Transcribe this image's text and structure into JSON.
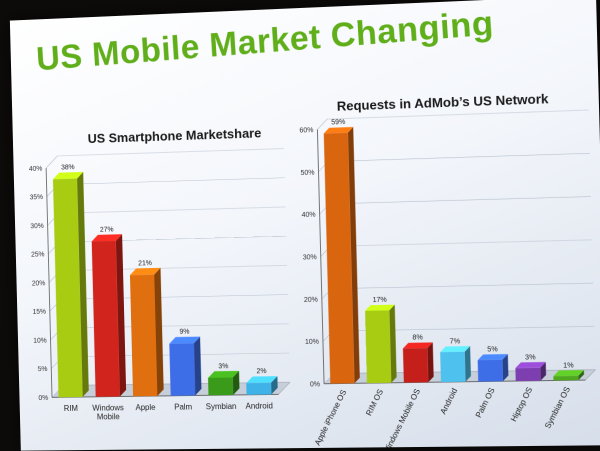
{
  "slide_title": "US Mobile Market Changing",
  "chart_data": [
    {
      "type": "bar",
      "title": "US Smartphone Marketshare",
      "categories": [
        "RIM",
        "Windows Mobile",
        "Apple",
        "Palm",
        "Symbian",
        "Android"
      ],
      "category_lines": [
        [
          "RIM"
        ],
        [
          "Windows",
          "Mobile"
        ],
        [
          "Apple"
        ],
        [
          "Palm"
        ],
        [
          "Symbian"
        ],
        [
          "Android"
        ]
      ],
      "values": [
        38,
        27,
        21,
        9,
        3,
        2
      ],
      "value_labels": [
        "38%",
        "27%",
        "21%",
        "9%",
        "3%",
        "2%"
      ],
      "colors": [
        "#a8cc12",
        "#d0241c",
        "#e0700f",
        "#3d6ee8",
        "#3a9a1a",
        "#3fb3e8"
      ],
      "yticks": [
        "0%",
        "5%",
        "10%",
        "15%",
        "20%",
        "25%",
        "30%",
        "35%",
        "40%"
      ],
      "ylim": [
        0,
        40
      ]
    },
    {
      "type": "bar",
      "title": "Requests in AdMob’s US Network",
      "categories": [
        "Apple iPhone OS",
        "RIM OS",
        "Windows Mobile OS",
        "Android",
        "Palm OS",
        "Hiptop OS",
        "Symbian OS"
      ],
      "values": [
        59,
        17,
        8,
        7,
        5,
        3,
        1
      ],
      "value_labels": [
        "59%",
        "17%",
        "8%",
        "7%",
        "5%",
        "3%",
        "1%"
      ],
      "colors": [
        "#d9650f",
        "#a8cc12",
        "#c41f1a",
        "#4fc1ee",
        "#3d6ee8",
        "#7d3fb0",
        "#4ea81e"
      ],
      "yticks": [
        "0%",
        "10%",
        "20%",
        "30%",
        "40%",
        "50%",
        "60%"
      ],
      "ylim": [
        0,
        60
      ]
    }
  ]
}
